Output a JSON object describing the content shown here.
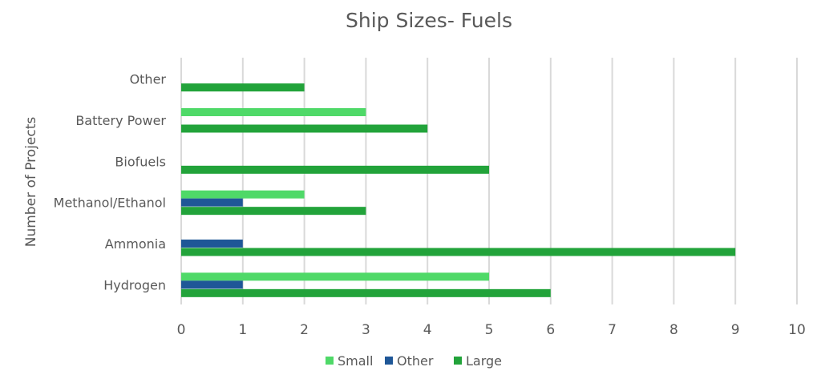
{
  "chart_data": {
    "type": "bar",
    "orientation": "horizontal",
    "title": "Ship Sizes- Fuels",
    "xlabel": "",
    "ylabel": "Number of Projects",
    "categories": [
      "Hydrogen",
      "Ammonia",
      "Methanol/Ethanol",
      "Biofuels",
      "Battery Power",
      "Other"
    ],
    "series": [
      {
        "name": "Small",
        "color": "#4fd968",
        "values": [
          5,
          0,
          2,
          0,
          3,
          0
        ]
      },
      {
        "name": "Other",
        "color": "#1f5797",
        "values": [
          1,
          1,
          1,
          0,
          0,
          0
        ]
      },
      {
        "name": "Large",
        "color": "#22a33a",
        "values": [
          6,
          9,
          3,
          5,
          4,
          2
        ]
      }
    ],
    "xlim": [
      0,
      10
    ],
    "xticks": [
      0,
      1,
      2,
      3,
      4,
      5,
      6,
      7,
      8,
      9,
      10
    ],
    "grid": true,
    "legend": "bottom"
  }
}
